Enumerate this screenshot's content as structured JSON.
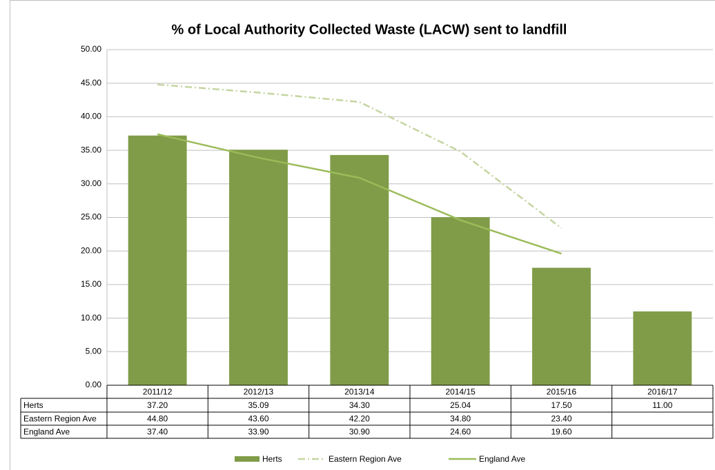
{
  "chart_data": {
    "type": "bar",
    "title": "% of Local Authority Collected Waste (LACW) sent to landfill",
    "categories": [
      "2011/12",
      "2012/13",
      "2013/14",
      "2014/15",
      "2015/16",
      "2016/17"
    ],
    "series": [
      {
        "name": "Herts",
        "type": "bar",
        "color": "#809c48",
        "values": [
          37.2,
          35.09,
          34.3,
          25.04,
          17.5,
          11.0
        ],
        "value_labels": [
          "37.20",
          "35.09",
          "34.30",
          "25.04",
          "17.50",
          "11.00"
        ]
      },
      {
        "name": "Eastern Region Ave",
        "type": "line",
        "line_style": "dash-dot",
        "color": "#c4d5a0",
        "values": [
          44.8,
          43.6,
          42.2,
          34.8,
          23.4,
          null
        ],
        "value_labels": [
          "44.80",
          "43.60",
          "42.20",
          "34.80",
          "23.40",
          null
        ]
      },
      {
        "name": "England Ave",
        "type": "line",
        "line_style": "solid",
        "color": "#9bbb59",
        "values": [
          37.4,
          33.9,
          30.9,
          24.6,
          19.6,
          null
        ],
        "value_labels": [
          "37.40",
          "33.90",
          "30.90",
          "24.60",
          "19.60",
          null
        ]
      }
    ],
    "ylim": [
      0,
      50
    ],
    "yticks": [
      {
        "value": 0,
        "label": "0.00"
      },
      {
        "value": 5,
        "label": "5.00"
      },
      {
        "value": 10,
        "label": "10.00"
      },
      {
        "value": 15,
        "label": "15.00"
      },
      {
        "value": 20,
        "label": "20.00"
      },
      {
        "value": 25,
        "label": "25.00"
      },
      {
        "value": 30,
        "label": "30.00"
      },
      {
        "value": 35,
        "label": "35.00"
      },
      {
        "value": 40,
        "label": "40.00"
      },
      {
        "value": 45,
        "label": "45.00"
      },
      {
        "value": 50,
        "label": "50.00"
      }
    ],
    "grid": true,
    "legend": "bottom",
    "data_table": true
  }
}
